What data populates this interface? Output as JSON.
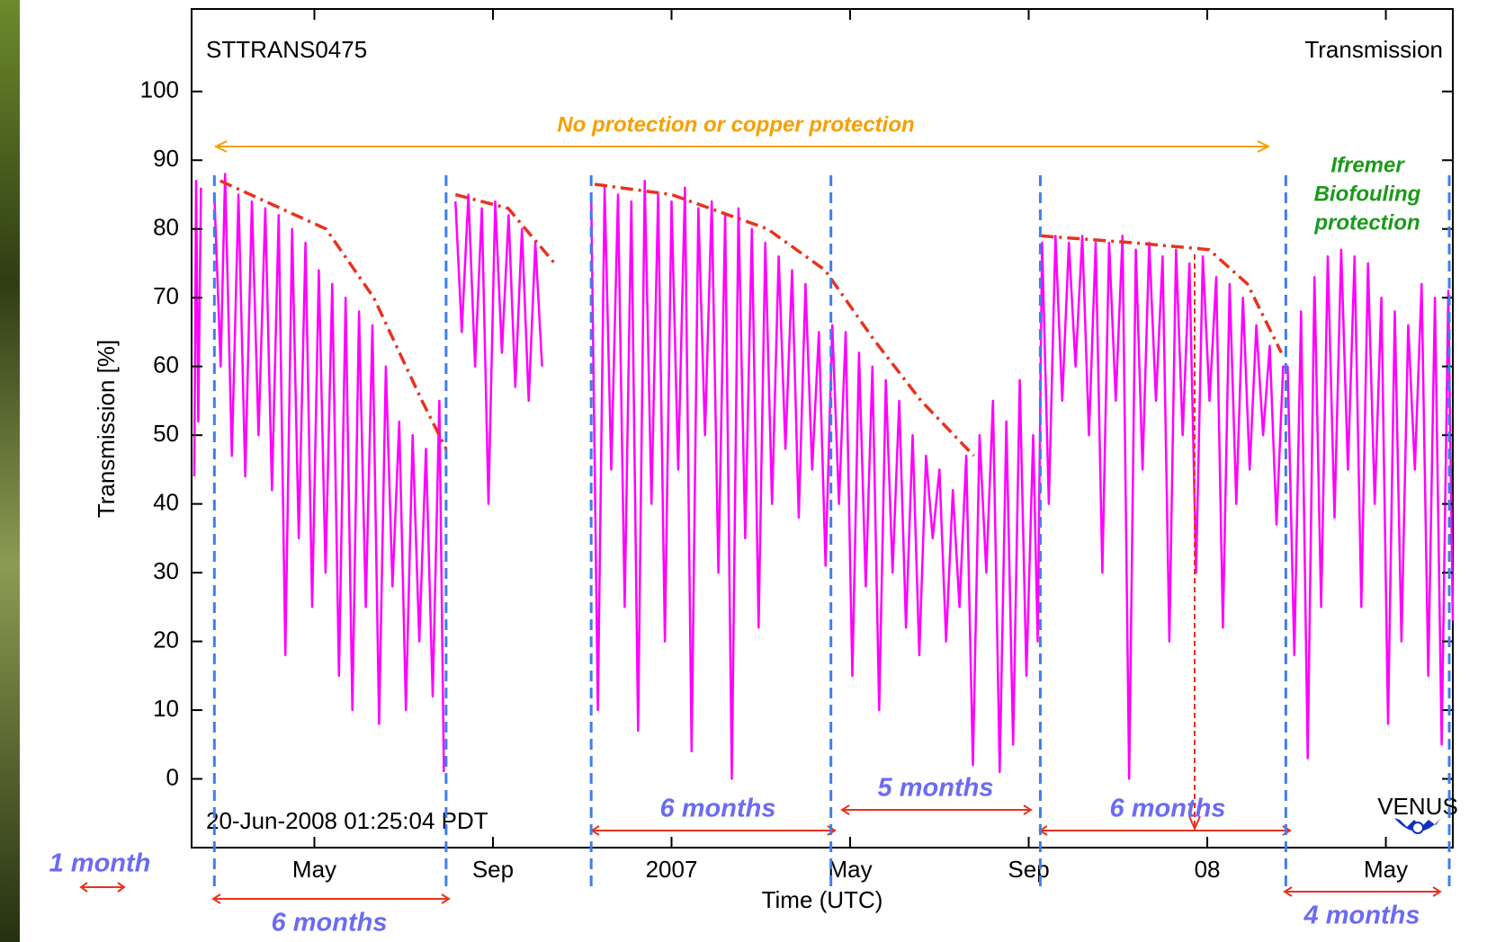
{
  "chart_data": {
    "type": "line",
    "title": "STTRANS0475",
    "subtitle": "Transmission",
    "timestamp": "20-Jun-2008 01:25:04 PDT",
    "ylabel": "Transmission [%]",
    "xlabel": "Time (UTC)",
    "xlim": [
      1.25,
      29.5
    ],
    "ylim": [
      -10,
      112
    ],
    "xticks": [
      {
        "value": 4,
        "label": "May"
      },
      {
        "value": 8,
        "label": "Sep"
      },
      {
        "value": 12,
        "label": "2007"
      },
      {
        "value": 16,
        "label": "May"
      },
      {
        "value": 20,
        "label": "Sep"
      },
      {
        "value": 24,
        "label": "08"
      },
      {
        "value": 28,
        "label": "May"
      }
    ],
    "yticks": [
      0,
      10,
      20,
      30,
      40,
      50,
      60,
      70,
      80,
      90,
      100
    ],
    "vlines": [
      1.76,
      6.95,
      10.2,
      15.57,
      20.26,
      25.76,
      29.42
    ],
    "vline_color": "#3f7fe8",
    "annotations": {
      "no_protection": "No protection or copper protection",
      "ifremer": [
        "Ifremer",
        "Biofouling",
        "protection"
      ],
      "durations": [
        "1 month",
        "6 months",
        "6 months",
        "5 months",
        "6 months",
        "4 months"
      ],
      "logo": "VENUS"
    },
    "series": [
      {
        "color": "#ff00ff",
        "style": "solid",
        "x": [
          1.31,
          1.35,
          1.4,
          1.46,
          1.6,
          1.76,
          1.9,
          2.0,
          2.15,
          2.3,
          2.45,
          2.6,
          2.75,
          2.9,
          3.05,
          3.2,
          3.35,
          3.5,
          3.65,
          3.8,
          3.95,
          4.1,
          4.25,
          4.4,
          4.55,
          4.7,
          4.85,
          5.0,
          5.15,
          5.3,
          5.45,
          5.6,
          5.75,
          5.9,
          6.05,
          6.2,
          6.35,
          6.5,
          6.65,
          6.8,
          6.9,
          7.0,
          7.16,
          7.3,
          7.45,
          7.6,
          7.75,
          7.9,
          8.05,
          8.2,
          8.35,
          8.5,
          8.65,
          8.8,
          8.95,
          9.1,
          9.5,
          10.2,
          10.35,
          10.5,
          10.65,
          10.8,
          10.95,
          11.1,
          11.25,
          11.4,
          11.55,
          11.7,
          11.85,
          12.0,
          12.15,
          12.3,
          12.45,
          12.6,
          12.75,
          12.9,
          13.05,
          13.2,
          13.35,
          13.5,
          13.65,
          13.8,
          13.95,
          14.1,
          14.25,
          14.4,
          14.55,
          14.7,
          14.85,
          15.0,
          15.15,
          15.3,
          15.45,
          15.6,
          15.75,
          15.9,
          16.05,
          16.2,
          16.35,
          16.5,
          16.65,
          16.8,
          16.95,
          17.1,
          17.25,
          17.4,
          17.55,
          17.7,
          17.85,
          18.0,
          18.15,
          18.3,
          18.45,
          18.6,
          18.75,
          18.9,
          19.05,
          19.2,
          19.35,
          19.5,
          19.65,
          19.8,
          19.95,
          20.1,
          20.2,
          20.3,
          20.45,
          20.6,
          20.75,
          20.9,
          21.05,
          21.2,
          21.35,
          21.5,
          21.65,
          21.8,
          21.95,
          22.1,
          22.25,
          22.4,
          22.55,
          22.7,
          22.85,
          23.0,
          23.15,
          23.3,
          23.45,
          23.6,
          23.75,
          23.9,
          24.05,
          24.2,
          24.35,
          24.5,
          24.65,
          24.8,
          24.95,
          25.1,
          25.25,
          25.4,
          25.55,
          25.7,
          25.8,
          25.95,
          26.1,
          26.25,
          26.4,
          26.55,
          26.7,
          26.85,
          27.0,
          27.15,
          27.3,
          27.45,
          27.6,
          27.75,
          27.9,
          28.05,
          28.2,
          28.35,
          28.5,
          28.65,
          28.8,
          28.95,
          29.1,
          29.25,
          29.4,
          29.5
        ],
        "values": [
          44,
          87,
          52,
          86,
          null,
          85,
          60,
          88,
          47,
          85,
          44,
          84,
          50,
          83,
          42,
          82,
          18,
          80,
          35,
          78,
          25,
          74,
          30,
          72,
          15,
          70,
          10,
          68,
          25,
          66,
          8,
          60,
          28,
          52,
          10,
          50,
          20,
          48,
          12,
          55,
          1,
          null,
          84,
          65,
          85,
          60,
          83,
          40,
          84,
          62,
          82,
          57,
          80,
          55,
          78,
          60,
          null,
          85,
          10,
          86,
          45,
          85,
          25,
          84,
          7,
          87,
          40,
          85,
          20,
          84,
          45,
          86,
          4,
          83,
          50,
          84,
          30,
          82,
          0,
          83,
          35,
          80,
          22,
          78,
          40,
          76,
          48,
          74,
          38,
          72,
          45,
          65,
          31,
          66,
          40,
          65,
          15,
          62,
          28,
          60,
          10,
          58,
          30,
          55,
          22,
          50,
          18,
          47,
          35,
          45,
          20,
          42,
          25,
          47,
          2,
          50,
          30,
          55,
          1,
          52,
          5,
          58,
          15,
          50,
          20,
          78,
          40,
          79,
          55,
          78,
          60,
          79,
          50,
          78,
          30,
          78,
          55,
          79,
          0,
          77,
          45,
          78,
          55,
          76,
          20,
          77,
          50,
          75,
          30,
          76,
          55,
          73,
          22,
          72,
          40,
          70,
          45,
          66,
          50,
          63,
          37,
          60,
          60,
          18,
          68,
          3,
          73,
          25,
          76,
          38,
          77,
          45,
          76,
          25,
          75,
          40,
          70,
          8,
          68,
          20,
          66,
          45,
          72,
          15,
          70,
          5,
          71,
          23
        ]
      },
      {
        "color": "#e8321e",
        "style": "dashdot",
        "x": [
          1.89,
          4.26,
          5.33,
          6.41,
          6.95,
          7.05,
          7.16,
          8.34,
          9.38,
          9.9,
          10.28,
          12.0,
          14.15,
          15.44,
          16.52,
          17.59,
          18.77,
          19.5,
          20.28,
          22.32,
          24.04,
          24.9,
          25.66
        ],
        "values": [
          87,
          80,
          70,
          55,
          48,
          null,
          85,
          83,
          75,
          null,
          86.5,
          85,
          80,
          74,
          64,
          55,
          47,
          null,
          79,
          78,
          77,
          72,
          62
        ]
      }
    ]
  }
}
